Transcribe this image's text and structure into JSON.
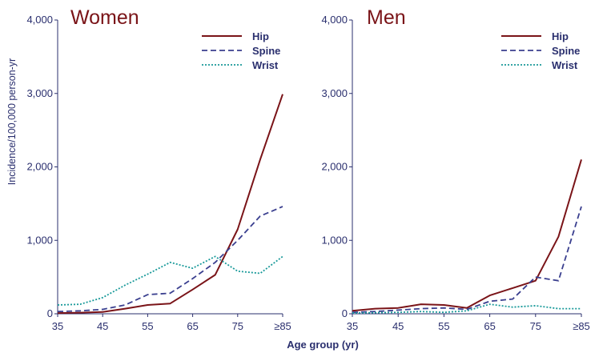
{
  "figure": {
    "xlabel": "Age group (yr)",
    "ylabel": "Incidence/100,000 person-yr"
  },
  "colors": {
    "hip": "#7a1418",
    "spine": "#3a3f8f",
    "wrist": "#1a9a9a",
    "axis": "#2a2f6e"
  },
  "chart_data": [
    {
      "type": "line",
      "title": "Women",
      "categories": [
        "35",
        "45",
        "55",
        "65",
        "75",
        "≥85"
      ],
      "x": [
        35,
        40,
        45,
        50,
        55,
        60,
        65,
        70,
        75,
        80,
        85
      ],
      "ylim": [
        0,
        4000
      ],
      "yticks": [
        "0",
        "1,000",
        "2,000",
        "3,000",
        "4,000"
      ],
      "grid": false,
      "legend_position": "top-right",
      "series": [
        {
          "name": "Hip",
          "style": "solid",
          "values": [
            10,
            15,
            25,
            70,
            120,
            140,
            330,
            530,
            1150,
            2100,
            2990
          ]
        },
        {
          "name": "Spine",
          "style": "dashed",
          "values": [
            30,
            40,
            60,
            120,
            260,
            280,
            480,
            700,
            1000,
            1330,
            1460
          ]
        },
        {
          "name": "Wrist",
          "style": "dotted",
          "values": [
            120,
            130,
            220,
            390,
            540,
            700,
            620,
            780,
            580,
            550,
            780
          ]
        }
      ]
    },
    {
      "type": "line",
      "title": "Men",
      "categories": [
        "35",
        "45",
        "55",
        "65",
        "75",
        "≥85"
      ],
      "x": [
        35,
        40,
        45,
        50,
        55,
        60,
        65,
        70,
        75,
        80,
        85
      ],
      "ylim": [
        0,
        4000
      ],
      "yticks": [
        "0",
        "1,000",
        "2,000",
        "3,000",
        "4,000"
      ],
      "grid": false,
      "legend_position": "top-right",
      "series": [
        {
          "name": "Hip",
          "style": "solid",
          "values": [
            40,
            70,
            80,
            130,
            120,
            80,
            250,
            350,
            450,
            1050,
            2100
          ]
        },
        {
          "name": "Spine",
          "style": "dashed",
          "values": [
            20,
            30,
            50,
            70,
            80,
            60,
            170,
            200,
            500,
            450,
            1460
          ]
        },
        {
          "name": "Wrist",
          "style": "dotted",
          "values": [
            10,
            15,
            20,
            30,
            20,
            40,
            130,
            90,
            110,
            70,
            70
          ]
        }
      ]
    }
  ]
}
